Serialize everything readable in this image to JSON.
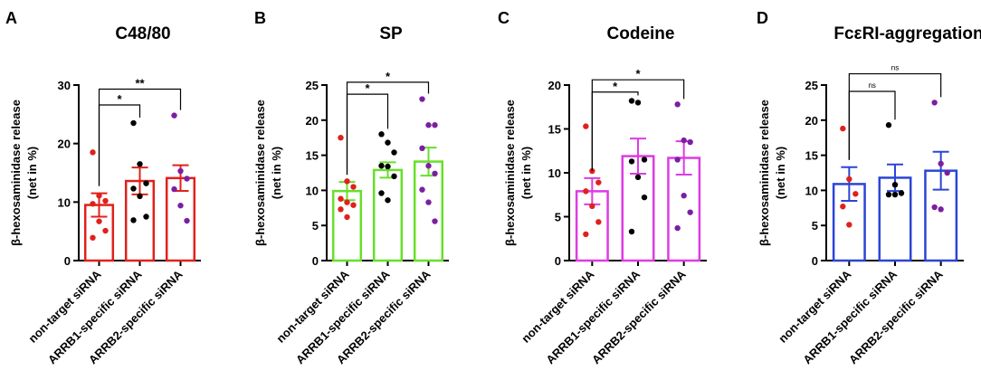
{
  "chart_data": [
    {
      "type": "bar",
      "panel_label": "A",
      "title": "C48/80",
      "ylabel": "β-hexosaminidase release",
      "ylabel2": "(net in %)",
      "ylim": [
        0,
        30
      ],
      "yticks": [
        0,
        10,
        20,
        30
      ],
      "categories": [
        "non-target siRNA",
        "ARRB1-specific siRNA",
        "ARRB2-specific siRNA"
      ],
      "bar_color": "#e0211b",
      "dot_colors": [
        "#e0211b",
        "#000000",
        "#7b1fa2"
      ],
      "means": [
        9.5,
        13.6,
        14.1
      ],
      "sem": [
        2.0,
        2.3,
        2.2
      ],
      "points": [
        [
          18.5,
          11.1,
          10.2,
          9.7,
          6.7,
          5.1,
          3.9
        ],
        [
          23.5,
          16.5,
          13.2,
          12.3,
          11.0,
          7.5,
          6.9
        ],
        [
          24.8,
          15.3,
          14.0,
          12.2,
          9.4,
          6.8
        ]
      ],
      "significance": [
        {
          "from": 0,
          "to": 1,
          "label": "*"
        },
        {
          "from": 0,
          "to": 2,
          "label": "**"
        }
      ],
      "sig_y": [
        26.6,
        29.3
      ]
    },
    {
      "type": "bar",
      "panel_label": "B",
      "title": "SP",
      "ylabel": "β-hexosaminidase release",
      "ylabel2": "(net in %)",
      "ylim": [
        0,
        25
      ],
      "yticks": [
        0,
        5,
        10,
        15,
        20,
        25
      ],
      "categories": [
        "non-target siRNA",
        "ARRB1-specific siRNA",
        "ARRB2-specific siRNA"
      ],
      "bar_color": "#66e029",
      "dot_colors": [
        "#e0211b",
        "#000000",
        "#7b1fa2"
      ],
      "means": [
        9.9,
        12.9,
        14.1
      ],
      "sem": [
        1.3,
        1.1,
        2.0
      ],
      "points": [
        [
          17.5,
          11.3,
          10.5,
          8.8,
          8.3,
          7.9,
          7.3,
          6.2
        ],
        [
          18.0,
          16.8,
          15.4,
          13.5,
          13.4,
          12.0,
          9.6,
          8.6
        ],
        [
          23.0,
          19.3,
          19.3,
          16.0,
          13.5,
          12.4,
          10.1,
          8.3,
          5.6
        ]
      ],
      "significance": [
        {
          "from": 0,
          "to": 1,
          "label": "*"
        },
        {
          "from": 0,
          "to": 2,
          "label": "*"
        }
      ],
      "sig_y": [
        23.7,
        25.4
      ]
    },
    {
      "type": "bar",
      "panel_label": "C",
      "title": "Codeine",
      "ylabel": "β-hexosaminidase release",
      "ylabel2": "(net in %)",
      "ylim": [
        0,
        20
      ],
      "yticks": [
        0,
        5,
        10,
        15,
        20
      ],
      "categories": [
        "non-target siRNA",
        "ARRB1-specific siRNA",
        "ARRB2-specific siRNA"
      ],
      "bar_color": "#de3be3",
      "dot_colors": [
        "#e0211b",
        "#000000",
        "#7b1fa2"
      ],
      "means": [
        7.9,
        11.9,
        11.7
      ],
      "sem": [
        1.5,
        2.0,
        1.9
      ],
      "points": [
        [
          15.3,
          10.2,
          8.9,
          7.9,
          6.2,
          4.4,
          3.0
        ],
        [
          18.2,
          18.0,
          11.5,
          11.3,
          9.5,
          7.2,
          3.3
        ],
        [
          17.8,
          13.7,
          13.5,
          11.5,
          7.4,
          5.5,
          3.7
        ]
      ],
      "significance": [
        {
          "from": 0,
          "to": 1,
          "label": "*"
        },
        {
          "from": 0,
          "to": 2,
          "label": "*"
        }
      ],
      "sig_y": [
        19.2,
        20.6
      ]
    },
    {
      "type": "bar",
      "panel_label": "D",
      "title": "FcεRI-aggregation",
      "ylabel": "β-hexosaminidase release",
      "ylabel2": "(net in %)",
      "ylim": [
        0,
        25
      ],
      "yticks": [
        0,
        5,
        10,
        15,
        20,
        25
      ],
      "categories": [
        "non-target siRNA",
        "ARRB1-specific siRNA",
        "ARRB2-specific siRNA"
      ],
      "bar_color": "#2b45d6",
      "dot_colors": [
        "#e0211b",
        "#000000",
        "#7b1fa2"
      ],
      "means": [
        10.9,
        11.8,
        12.8
      ],
      "sem": [
        2.4,
        1.9,
        2.7
      ],
      "points": [
        [
          18.8,
          11.6,
          9.5,
          7.7,
          5.1
        ],
        [
          19.3,
          10.8,
          9.6,
          9.4,
          9.4
        ],
        [
          22.5,
          13.8,
          12.5,
          7.6,
          7.3
        ]
      ],
      "significance": [
        {
          "from": 0,
          "to": 1,
          "label": "ns"
        },
        {
          "from": 0,
          "to": 2,
          "label": "ns"
        }
      ],
      "sig_y": [
        24.1,
        26.6
      ]
    }
  ]
}
